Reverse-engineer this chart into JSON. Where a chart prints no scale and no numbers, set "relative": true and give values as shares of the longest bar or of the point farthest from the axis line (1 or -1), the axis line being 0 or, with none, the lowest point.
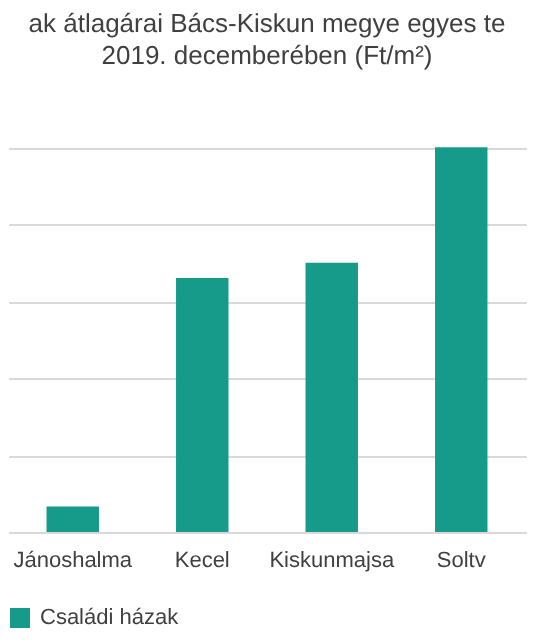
{
  "chart_data": {
    "type": "bar",
    "title": "ak átlagárai Bács-Kiskun megye egyes te",
    "subtitle": "2019. decemberében (Ft/m²)",
    "categories": [
      "Jánoshalma",
      "Kecel",
      "Kiskunmajsa",
      "Soltv"
    ],
    "relative": true,
    "grid": "y",
    "legend": "bottom",
    "series": [
      {
        "name": "Családi házak",
        "color": "#169b8a",
        "values": [
          0.066,
          0.66,
          0.7,
          1
        ]
      }
    ]
  }
}
